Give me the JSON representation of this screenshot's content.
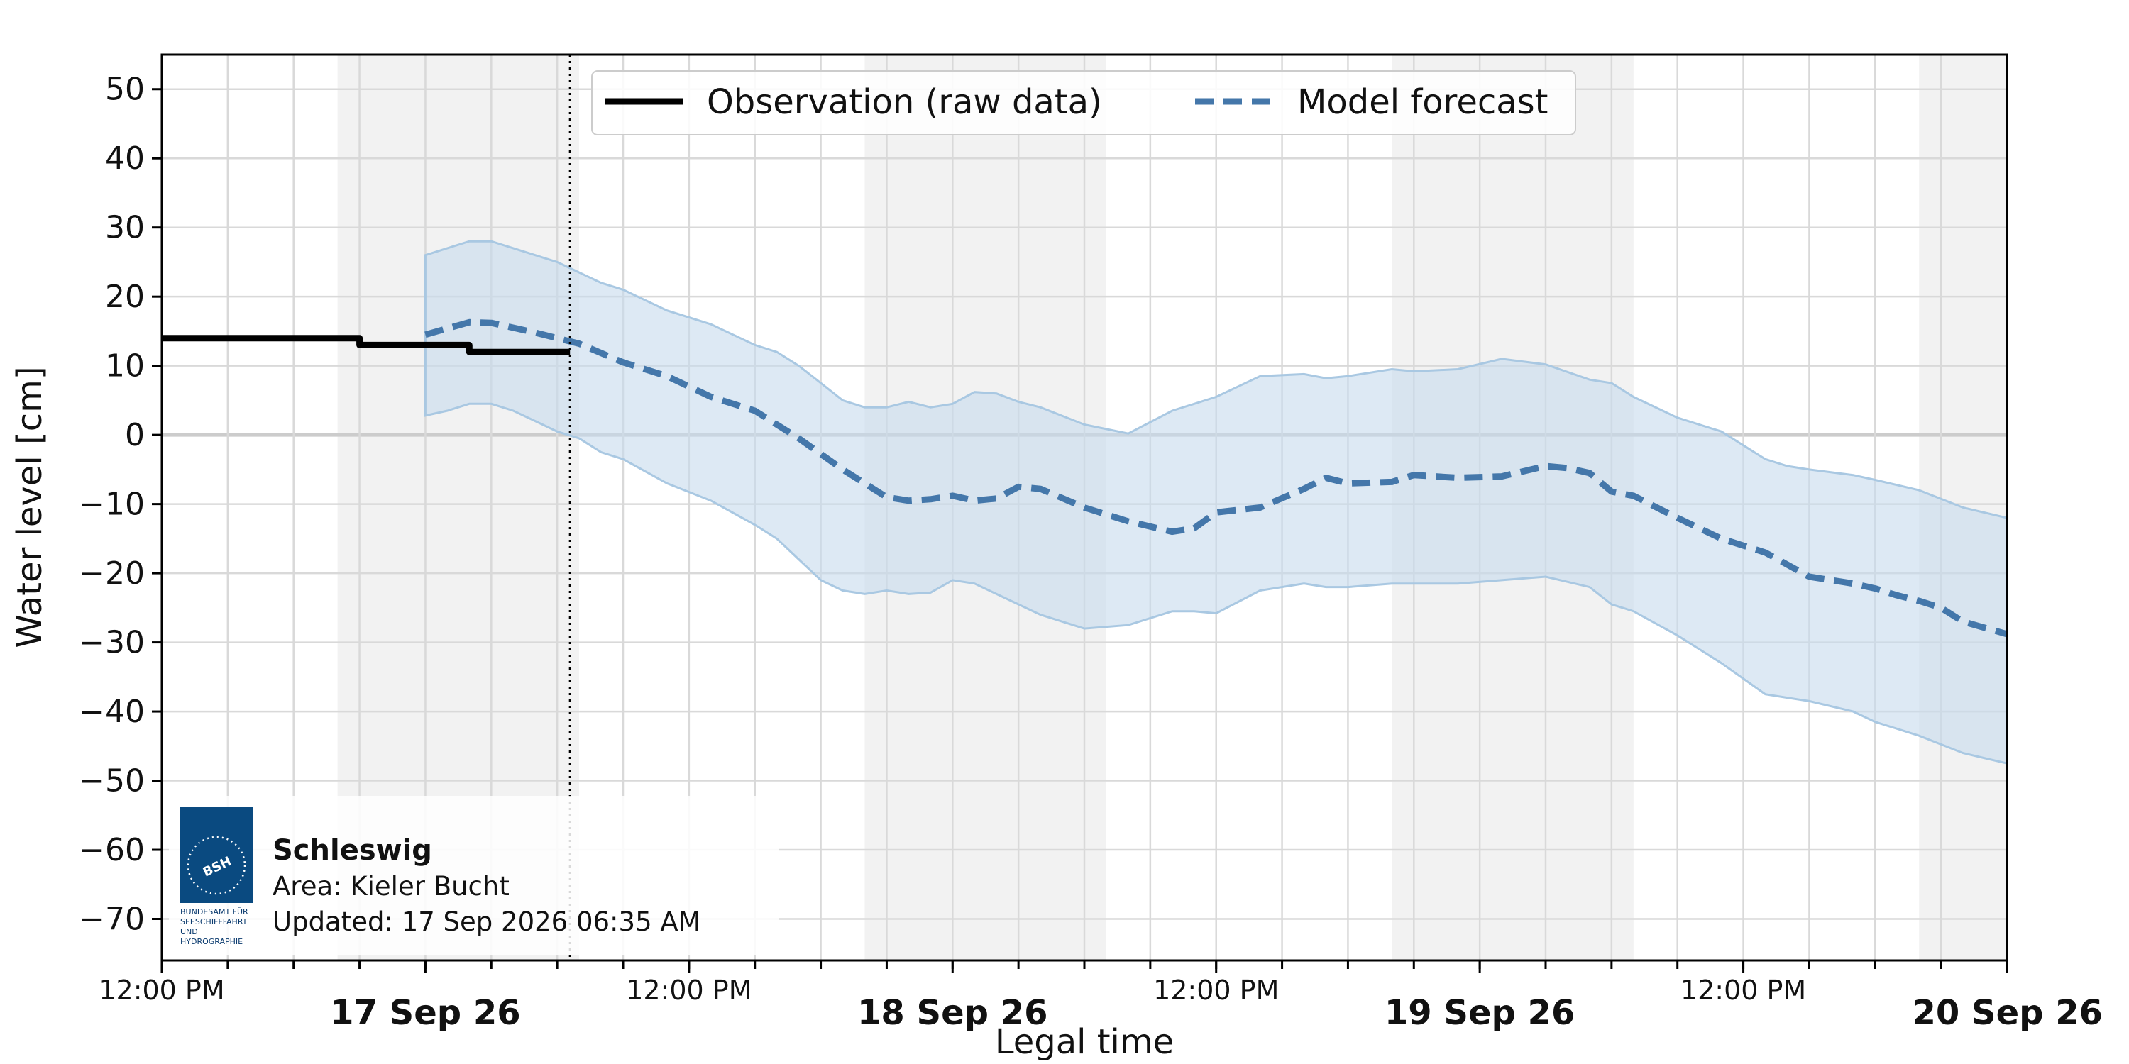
{
  "chart_data": {
    "type": "line",
    "xlabel": "Legal time",
    "ylabel": "Water level [cm]",
    "ylim": [
      -76,
      55
    ],
    "xlim": [
      "2026-09-16T12:00",
      "2026-09-20T00:00"
    ],
    "y_ticks": [
      "50",
      "40",
      "30",
      "20",
      "10",
      "0",
      "−10",
      "−20",
      "−30",
      "−40",
      "−50",
      "−60",
      "−70"
    ],
    "x_ticks": [
      {
        "label": "12:00 PM",
        "major": false
      },
      {
        "label": "17 Sep 26",
        "major": true
      },
      {
        "label": "12:00 PM",
        "major": false
      },
      {
        "label": "18 Sep 26",
        "major": true
      },
      {
        "label": "12:00 PM",
        "major": false
      },
      {
        "label": "19 Sep 26",
        "major": true
      },
      {
        "label": "12:00 PM",
        "major": false
      },
      {
        "label": "20 Sep 26",
        "major": true
      }
    ],
    "grid": true,
    "legend_position": "top-center",
    "now": "2026-09-17T06:35",
    "colors": {
      "observation": "#000000",
      "forecast": "#4477aa",
      "band": "#c6dbec",
      "night": "#f2f2f2",
      "grid": "#d9d9d9",
      "zero": "#cccccc"
    },
    "series": [
      {
        "name": "Observation (raw data)",
        "style": "solid-step",
        "points": [
          [
            "2026-09-16T12:00",
            14
          ],
          [
            "2026-09-16T21:00",
            14
          ],
          [
            "2026-09-16T21:00",
            13
          ],
          [
            "2026-09-17T02:00",
            13
          ],
          [
            "2026-09-17T02:00",
            12
          ],
          [
            "2026-09-17T06:35",
            12
          ]
        ]
      },
      {
        "name": "Model forecast",
        "style": "dashed",
        "points": [
          [
            "2026-09-17T00:00",
            14.5
          ],
          [
            "2026-09-17T02:00",
            16.3
          ],
          [
            "2026-09-17T03:00",
            16.2
          ],
          [
            "2026-09-17T05:00",
            14.8
          ],
          [
            "2026-09-17T07:00",
            13.2
          ],
          [
            "2026-09-17T09:00",
            10.5
          ],
          [
            "2026-09-17T11:00",
            8.5
          ],
          [
            "2026-09-17T13:00",
            5.5
          ],
          [
            "2026-09-17T15:00",
            3.5
          ],
          [
            "2026-09-17T17:00",
            -0.5
          ],
          [
            "2026-09-17T19:00",
            -5
          ],
          [
            "2026-09-17T21:00",
            -9
          ],
          [
            "2026-09-17T22:00",
            -9.5
          ],
          [
            "2026-09-17T23:00",
            -9.3
          ],
          [
            "2026-09-18T00:00",
            -8.8
          ],
          [
            "2026-09-18T01:00",
            -9.5
          ],
          [
            "2026-09-18T02:00",
            -9.2
          ],
          [
            "2026-09-18T03:00",
            -7.5
          ],
          [
            "2026-09-18T04:00",
            -7.8
          ],
          [
            "2026-09-18T06:00",
            -10.5
          ],
          [
            "2026-09-18T08:00",
            -12.5
          ],
          [
            "2026-09-18T10:00",
            -14
          ],
          [
            "2026-09-18T11:00",
            -13.5
          ],
          [
            "2026-09-18T12:00",
            -11.2
          ],
          [
            "2026-09-18T14:00",
            -10.5
          ],
          [
            "2026-09-18T16:00",
            -7.8
          ],
          [
            "2026-09-18T17:00",
            -6.2
          ],
          [
            "2026-09-18T18:00",
            -7
          ],
          [
            "2026-09-18T20:00",
            -6.8
          ],
          [
            "2026-09-18T21:00",
            -5.8
          ],
          [
            "2026-09-18T23:00",
            -6.2
          ],
          [
            "2026-09-19T01:00",
            -6
          ],
          [
            "2026-09-19T03:00",
            -4.5
          ],
          [
            "2026-09-19T04:00",
            -4.8
          ],
          [
            "2026-09-19T05:00",
            -5.5
          ],
          [
            "2026-09-19T06:00",
            -8.2
          ],
          [
            "2026-09-19T07:00",
            -8.8
          ],
          [
            "2026-09-19T09:00",
            -12
          ],
          [
            "2026-09-19T11:00",
            -15
          ],
          [
            "2026-09-19T13:00",
            -17
          ],
          [
            "2026-09-19T15:00",
            -20.5
          ],
          [
            "2026-09-19T17:00",
            -21.5
          ],
          [
            "2026-09-19T18:00",
            -22.2
          ],
          [
            "2026-09-19T19:00",
            -23.2
          ],
          [
            "2026-09-19T20:00",
            -24
          ],
          [
            "2026-09-19T21:00",
            -25
          ],
          [
            "2026-09-19T22:00",
            -27
          ],
          [
            "2026-09-20T00:00",
            -28.8
          ],
          [
            "2026-09-20T02:00",
            -30.5
          ],
          [
            "2026-09-20T04:00",
            -31
          ]
        ]
      }
    ],
    "uncertainty_band": {
      "x": [
        "2026-09-17T00:00",
        "2026-09-17T01:00",
        "2026-09-17T02:00",
        "2026-09-17T03:00",
        "2026-09-17T04:00",
        "2026-09-17T05:00",
        "2026-09-17T06:00",
        "2026-09-17T07:00",
        "2026-09-17T08:00",
        "2026-09-17T09:00",
        "2026-09-17T11:00",
        "2026-09-17T13:00",
        "2026-09-17T15:00",
        "2026-09-17T16:00",
        "2026-09-17T17:00",
        "2026-09-17T18:00",
        "2026-09-17T19:00",
        "2026-09-17T20:00",
        "2026-09-17T21:00",
        "2026-09-17T22:00",
        "2026-09-17T23:00",
        "2026-09-18T00:00",
        "2026-09-18T01:00",
        "2026-09-18T02:00",
        "2026-09-18T03:00",
        "2026-09-18T04:00",
        "2026-09-18T06:00",
        "2026-09-18T08:00",
        "2026-09-18T10:00",
        "2026-09-18T11:00",
        "2026-09-18T12:00",
        "2026-09-18T14:00",
        "2026-09-18T16:00",
        "2026-09-18T17:00",
        "2026-09-18T18:00",
        "2026-09-18T20:00",
        "2026-09-18T21:00",
        "2026-09-18T23:00",
        "2026-09-19T01:00",
        "2026-09-19T03:00",
        "2026-09-19T05:00",
        "2026-09-19T06:00",
        "2026-09-19T07:00",
        "2026-09-19T09:00",
        "2026-09-19T11:00",
        "2026-09-19T13:00",
        "2026-09-19T14:00",
        "2026-09-19T15:00",
        "2026-09-19T17:00",
        "2026-09-19T18:00",
        "2026-09-19T20:00",
        "2026-09-19T22:00",
        "2026-09-20T00:00",
        "2026-09-20T02:00",
        "2026-09-20T04:00"
      ],
      "upper": [
        26,
        27,
        28,
        28,
        27,
        26,
        25,
        23.5,
        22,
        21,
        18,
        16,
        13,
        12,
        10,
        7.5,
        5,
        4,
        4,
        4.8,
        4,
        4.5,
        6.2,
        6,
        4.8,
        4,
        1.5,
        0.2,
        3.5,
        4.5,
        5.5,
        8.5,
        8.8,
        8.2,
        8.5,
        9.5,
        9.2,
        9.5,
        11,
        10.2,
        8,
        7.5,
        5.5,
        2.5,
        0.5,
        -3.5,
        -4.5,
        -5,
        -5.8,
        -6.5,
        -8,
        -10.5,
        -12,
        -13.5,
        -13.5
      ],
      "lower": [
        2.8,
        3.5,
        4.5,
        4.5,
        3.5,
        2,
        0.5,
        -0.5,
        -2.5,
        -3.5,
        -7,
        -9.5,
        -13,
        -15,
        -18,
        -21,
        -22.5,
        -23,
        -22.5,
        -23,
        -22.8,
        -21,
        -21.5,
        -23,
        -24.5,
        -26,
        -28,
        -27.5,
        -25.5,
        -25.5,
        -25.8,
        -22.5,
        -21.5,
        -22,
        -22,
        -21.5,
        -21.5,
        -21.5,
        -21,
        -20.5,
        -22,
        -24.5,
        -25.5,
        -29,
        -33,
        -37.5,
        -38,
        -38.5,
        -40,
        -41.5,
        -43.5,
        -46,
        -47.5,
        -48.5,
        -48.5
      ]
    },
    "night_shading": [
      [
        "2026-09-16T20:00",
        "2026-09-17T07:00"
      ],
      [
        "2026-09-17T20:00",
        "2026-09-18T07:00"
      ],
      [
        "2026-09-18T20:00",
        "2026-09-19T07:00"
      ],
      [
        "2026-09-19T20:00",
        "2026-09-20T04:00"
      ]
    ]
  },
  "info": {
    "station": "Schleswig",
    "area": "Area: Kieler Bucht",
    "updated": "Updated: 17 Sep 2026 06:35 AM"
  },
  "logo": {
    "label": "BSH",
    "caption": [
      "BUNDESAMT FÜR",
      "SEESCHIFFFAHRT",
      "UND",
      "HYDROGRAPHIE"
    ]
  }
}
